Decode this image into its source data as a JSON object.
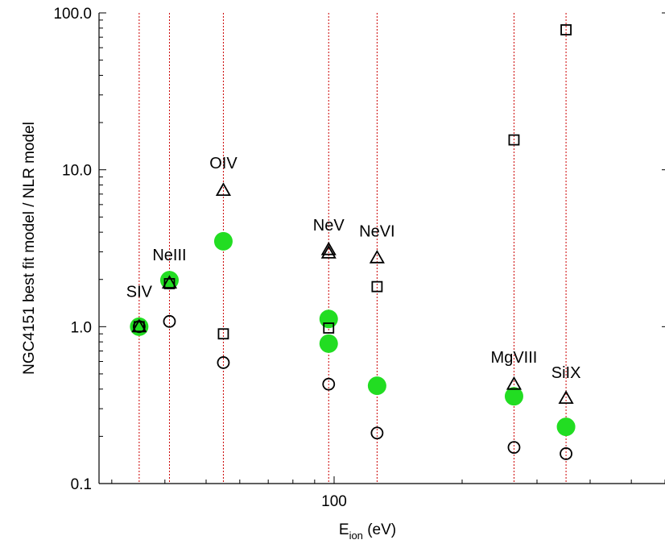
{
  "chart_data": {
    "type": "scatter",
    "title": "",
    "xlabel_main": "E",
    "xlabel_sub": "ion",
    "xlabel_unit": " (eV)",
    "ylabel": "NGC4151 best fit model / NLR model",
    "xscale": "log",
    "yscale": "log",
    "xlim": [
      28,
      600
    ],
    "ylim": [
      0.1,
      100
    ],
    "ytick_labels": [
      "0.1",
      "1.0",
      "10.0",
      "100.0"
    ],
    "yticks": [
      0.1,
      1,
      10,
      100
    ],
    "xtick_labels": [
      "100"
    ],
    "xticks": [
      100
    ],
    "grid": false,
    "ion_lines": {
      "color": "#cc0000",
      "x": [
        34.8,
        41.0,
        54.9,
        97.1,
        126.2,
        264.9,
        351.1
      ]
    },
    "annotations": [
      {
        "text": "SIV",
        "x": 34.8,
        "y": 1.55
      },
      {
        "text": "NeIII",
        "x": 41.0,
        "y": 2.65
      },
      {
        "text": "OIV",
        "x": 54.9,
        "y": 10.2
      },
      {
        "text": "NeV",
        "x": 97.1,
        "y": 4.1
      },
      {
        "text": "NeVI",
        "x": 126.2,
        "y": 3.75
      },
      {
        "text": "MgVIII",
        "x": 264.9,
        "y": 0.59
      },
      {
        "text": "SiIX",
        "x": 351.1,
        "y": 0.47
      }
    ],
    "series": [
      {
        "marker": "square",
        "x": [
          34.8,
          41.0,
          54.9,
          97.1,
          126.2,
          264.9,
          351.1
        ],
        "y": [
          1.0,
          1.88,
          0.9,
          0.98,
          1.8,
          15.5,
          78.0
        ]
      },
      {
        "marker": "triangle",
        "x": [
          34.8,
          41.0,
          54.9,
          97.1,
          97.1,
          126.2,
          264.9,
          351.1
        ],
        "y": [
          1.0,
          1.9,
          7.4,
          3.1,
          2.95,
          2.75,
          0.43,
          0.35
        ]
      },
      {
        "marker": "circle-open",
        "x": [
          34.8,
          41.0,
          54.9,
          97.1,
          126.2,
          264.9,
          351.1
        ],
        "y": [
          1.0,
          1.08,
          0.59,
          0.43,
          0.21,
          0.17,
          0.155
        ]
      },
      {
        "marker": "circle-filled",
        "color": "#22dd22",
        "x": [
          34.8,
          41.0,
          54.9,
          97.1,
          97.1,
          126.2,
          264.9,
          351.1
        ],
        "y": [
          1.0,
          1.98,
          3.5,
          1.12,
          0.78,
          0.42,
          0.36,
          0.23
        ]
      }
    ]
  }
}
